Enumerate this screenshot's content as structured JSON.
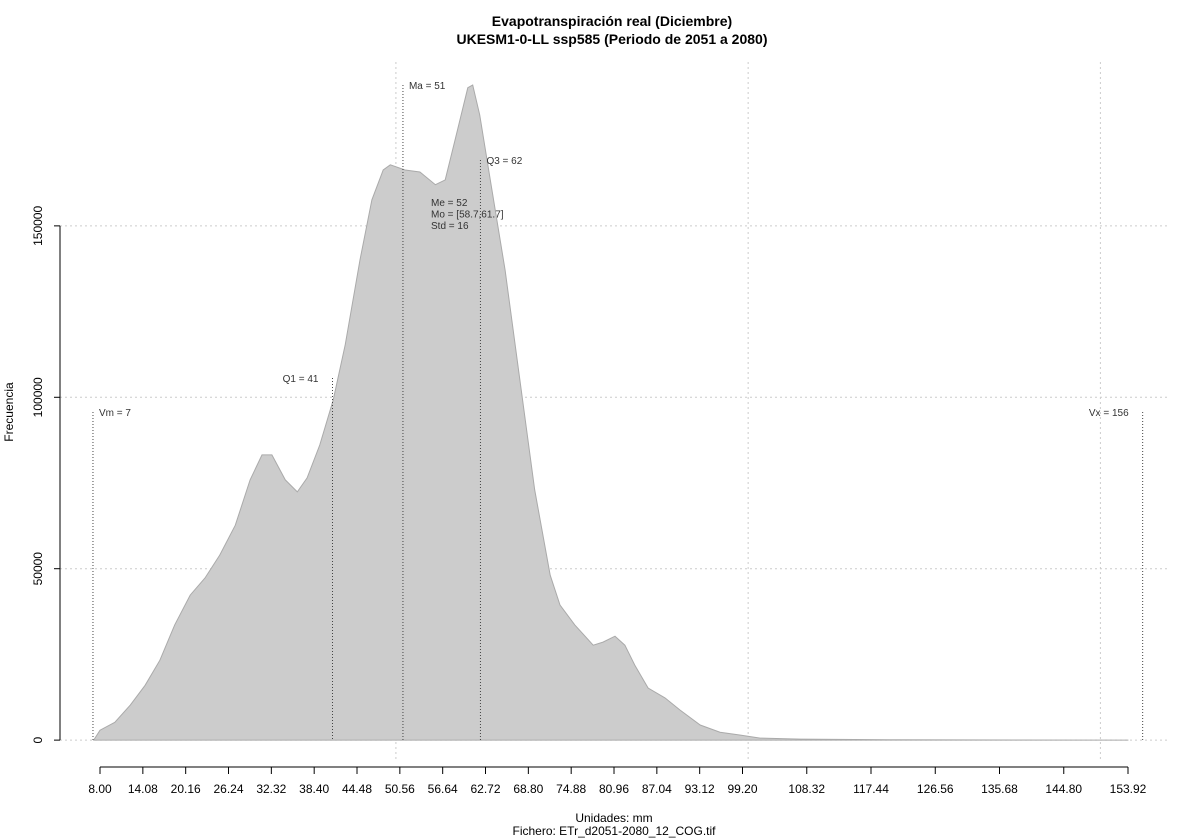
{
  "chart_data": {
    "type": "area",
    "title": "Evapotranspiración real (Diciembre)",
    "subtitle": "UKESM1-0-LL ssp585 (Periodo de 2051 a 2080)",
    "x_label": "Unidades: mm",
    "caption": "Fichero: ETr_d2051-2080_12_COG.tif",
    "y_label": "Frecuencia",
    "color": "#cccccc",
    "x": [
      7.1,
      8,
      10.1,
      12.3,
      14.4,
      16.5,
      18.6,
      20.8,
      22.9,
      25,
      27.2,
      29.3,
      31,
      32.4,
      34.3,
      36,
      37.4,
      39.2,
      41.1,
      42.8,
      44.9,
      46.6,
      48.2,
      49.2,
      51.3,
      53.4,
      55.6,
      57,
      58.4,
      60.2,
      60.9,
      61.9,
      63.4,
      65.5,
      67.6,
      69.7,
      71.9,
      73.3,
      75.4,
      78,
      79.4,
      81.1,
      82.5,
      83.9,
      85.8,
      88.2,
      90.3,
      93.2,
      96,
      98.8,
      101.7,
      107.4,
      121.6,
      153.9
    ],
    "values": [
      0,
      2900,
      5200,
      10200,
      16000,
      23300,
      33600,
      42300,
      47300,
      54000,
      62700,
      75900,
      83200,
      83200,
      75900,
      72400,
      76500,
      86100,
      99200,
      115300,
      140100,
      157600,
      166300,
      167800,
      166300,
      165700,
      162000,
      163400,
      175100,
      190300,
      191100,
      182400,
      163400,
      137100,
      105000,
      73000,
      48100,
      39400,
      33600,
      27700,
      28600,
      30300,
      27700,
      21900,
      15200,
      12300,
      8800,
      4400,
      2300,
      1500,
      600,
      300,
      100,
      0
    ],
    "xlim": [
      2.32,
      159.88
    ],
    "ylim": [
      -5800,
      197800
    ],
    "xticks": [
      {
        "value": 8,
        "label": "8.00"
      },
      14.08,
      20.16,
      26.24,
      32.32,
      {
        "value": 38.4,
        "label": "38.40"
      },
      44.48,
      50.56,
      56.64,
      62.72,
      {
        "value": 68.8,
        "label": "68.80"
      },
      74.88,
      80.96,
      87.04,
      93.12,
      {
        "value": 99.2,
        "label": "99.20"
      },
      108.32,
      117.44,
      126.56,
      135.68,
      {
        "value": 144.8,
        "label": "144.80"
      },
      153.92
    ],
    "yticks": [
      0,
      50000,
      100000,
      150000
    ],
    "xgrid": [
      50,
      100,
      150
    ],
    "grid": true,
    "annotations": [
      {
        "label": "Vm = 7",
        "x": 7
      },
      {
        "label": "Q1 = 41",
        "x": 41
      },
      {
        "label": "Ma = 51",
        "x": 51
      },
      {
        "label": "Q3 = 62",
        "x": 62
      },
      {
        "label": "Vx = 156",
        "x": 156
      }
    ],
    "stats": [
      "Me = 52",
      "Mo = [58.7,61.7]",
      "Std = 16"
    ]
  }
}
